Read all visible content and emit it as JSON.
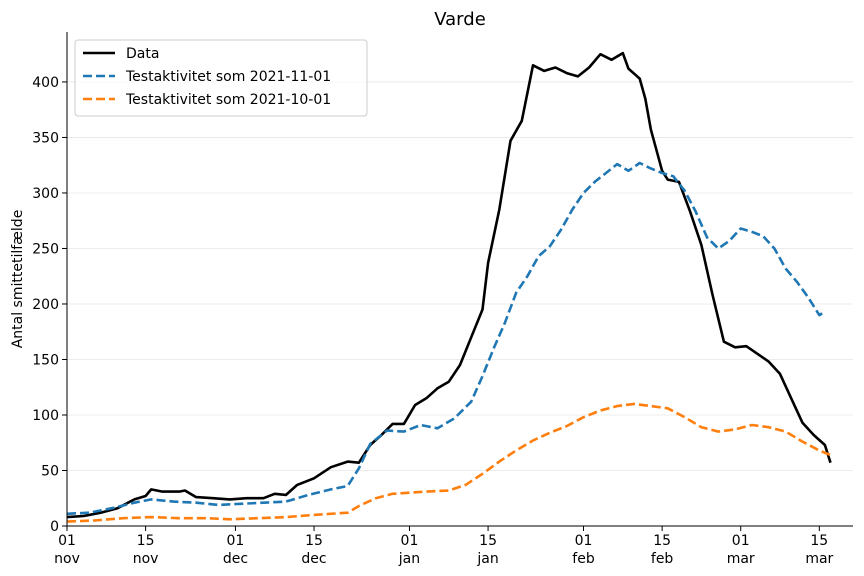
{
  "chart_data": {
    "type": "line",
    "title": "Varde",
    "xlabel": "",
    "ylabel": "Antal smittetilfælde",
    "ylim": [
      0,
      445
    ],
    "x_range": [
      "2021-11-01",
      "2022-03-21"
    ],
    "yticks": [
      0,
      50,
      100,
      150,
      200,
      250,
      300,
      350,
      400
    ],
    "xticks": [
      {
        "date": "2021-11-01",
        "day": "01",
        "month": "nov"
      },
      {
        "date": "2021-11-15",
        "day": "15",
        "month": "nov"
      },
      {
        "date": "2021-12-01",
        "day": "01",
        "month": "dec"
      },
      {
        "date": "2021-12-15",
        "day": "15",
        "month": "dec"
      },
      {
        "date": "2022-01-01",
        "day": "01",
        "month": "jan"
      },
      {
        "date": "2022-01-15",
        "day": "15",
        "month": "jan"
      },
      {
        "date": "2022-02-01",
        "day": "01",
        "month": "feb"
      },
      {
        "date": "2022-02-15",
        "day": "15",
        "month": "feb"
      },
      {
        "date": "2022-03-01",
        "day": "01",
        "month": "mar"
      },
      {
        "date": "2022-03-15",
        "day": "15",
        "month": "mar"
      }
    ],
    "grid": "horizontal",
    "legend_position": "top-left",
    "series": [
      {
        "name": "Data",
        "color": "#000000",
        "style": "solid",
        "points": [
          [
            "2021-11-01",
            8
          ],
          [
            "2021-11-04",
            9
          ],
          [
            "2021-11-07",
            12
          ],
          [
            "2021-11-10",
            16
          ],
          [
            "2021-11-13",
            24
          ],
          [
            "2021-11-15",
            27
          ],
          [
            "2021-11-16",
            33
          ],
          [
            "2021-11-18",
            31
          ],
          [
            "2021-11-21",
            31
          ],
          [
            "2021-11-22",
            32
          ],
          [
            "2021-11-24",
            26
          ],
          [
            "2021-11-27",
            25
          ],
          [
            "2021-11-30",
            24
          ],
          [
            "2021-12-03",
            25
          ],
          [
            "2021-12-06",
            25
          ],
          [
            "2021-12-08",
            29
          ],
          [
            "2021-12-10",
            28
          ],
          [
            "2021-12-12",
            37
          ],
          [
            "2021-12-15",
            43
          ],
          [
            "2021-12-18",
            53
          ],
          [
            "2021-12-21",
            58
          ],
          [
            "2021-12-23",
            57
          ],
          [
            "2021-12-25",
            73
          ],
          [
            "2021-12-27",
            82
          ],
          [
            "2021-12-29",
            92
          ],
          [
            "2021-12-31",
            92
          ],
          [
            "2022-01-02",
            109
          ],
          [
            "2022-01-04",
            115
          ],
          [
            "2022-01-06",
            124
          ],
          [
            "2022-01-08",
            130
          ],
          [
            "2022-01-10",
            145
          ],
          [
            "2022-01-12",
            170
          ],
          [
            "2022-01-14",
            195
          ],
          [
            "2022-01-15",
            237
          ],
          [
            "2022-01-17",
            285
          ],
          [
            "2022-01-19",
            347
          ],
          [
            "2022-01-21",
            365
          ],
          [
            "2022-01-23",
            415
          ],
          [
            "2022-01-25",
            410
          ],
          [
            "2022-01-27",
            413
          ],
          [
            "2022-01-29",
            408
          ],
          [
            "2022-01-31",
            405
          ],
          [
            "2022-02-02",
            413
          ],
          [
            "2022-02-04",
            425
          ],
          [
            "2022-02-06",
            420
          ],
          [
            "2022-02-08",
            426
          ],
          [
            "2022-02-09",
            412
          ],
          [
            "2022-02-11",
            403
          ],
          [
            "2022-02-12",
            385
          ],
          [
            "2022-02-13",
            357
          ],
          [
            "2022-02-15",
            320
          ],
          [
            "2022-02-16",
            312
          ],
          [
            "2022-02-18",
            310
          ],
          [
            "2022-02-20",
            283
          ],
          [
            "2022-02-22",
            253
          ],
          [
            "2022-02-24",
            208
          ],
          [
            "2022-02-26",
            166
          ],
          [
            "2022-02-28",
            161
          ],
          [
            "2022-03-02",
            162
          ],
          [
            "2022-03-04",
            155
          ],
          [
            "2022-03-06",
            148
          ],
          [
            "2022-03-08",
            137
          ],
          [
            "2022-03-10",
            115
          ],
          [
            "2022-03-12",
            93
          ],
          [
            "2022-03-14",
            82
          ],
          [
            "2022-03-16",
            73
          ],
          [
            "2022-03-17",
            57
          ]
        ]
      },
      {
        "name": "Testaktivitet som 2021-11-01",
        "color": "#1f77b4",
        "style": "dashed",
        "points": [
          [
            "2021-11-01",
            11
          ],
          [
            "2021-11-05",
            12
          ],
          [
            "2021-11-09",
            16
          ],
          [
            "2021-11-13",
            21
          ],
          [
            "2021-11-16",
            24
          ],
          [
            "2021-11-20",
            22
          ],
          [
            "2021-11-24",
            21
          ],
          [
            "2021-11-28",
            19
          ],
          [
            "2021-12-02",
            20
          ],
          [
            "2021-12-06",
            21
          ],
          [
            "2021-12-10",
            22
          ],
          [
            "2021-12-14",
            28
          ],
          [
            "2021-12-18",
            33
          ],
          [
            "2021-12-21",
            36
          ],
          [
            "2021-12-23",
            52
          ],
          [
            "2021-12-25",
            74
          ],
          [
            "2021-12-28",
            86
          ],
          [
            "2021-12-31",
            85
          ],
          [
            "2022-01-03",
            91
          ],
          [
            "2022-01-06",
            88
          ],
          [
            "2022-01-09",
            97
          ],
          [
            "2022-01-12",
            112
          ],
          [
            "2022-01-14",
            135
          ],
          [
            "2022-01-16",
            160
          ],
          [
            "2022-01-18",
            183
          ],
          [
            "2022-01-20",
            210
          ],
          [
            "2022-01-22",
            225
          ],
          [
            "2022-01-24",
            243
          ],
          [
            "2022-01-26",
            252
          ],
          [
            "2022-01-28",
            267
          ],
          [
            "2022-01-30",
            285
          ],
          [
            "2022-02-01",
            300
          ],
          [
            "2022-02-03",
            310
          ],
          [
            "2022-02-05",
            318
          ],
          [
            "2022-02-07",
            326
          ],
          [
            "2022-02-09",
            320
          ],
          [
            "2022-02-11",
            327
          ],
          [
            "2022-02-13",
            322
          ],
          [
            "2022-02-15",
            318
          ],
          [
            "2022-02-17",
            315
          ],
          [
            "2022-02-19",
            302
          ],
          [
            "2022-02-21",
            283
          ],
          [
            "2022-02-23",
            260
          ],
          [
            "2022-02-25",
            250
          ],
          [
            "2022-02-27",
            257
          ],
          [
            "2022-03-01",
            268
          ],
          [
            "2022-03-03",
            265
          ],
          [
            "2022-03-05",
            261
          ],
          [
            "2022-03-07",
            250
          ],
          [
            "2022-03-09",
            232
          ],
          [
            "2022-03-11",
            220
          ],
          [
            "2022-03-13",
            206
          ],
          [
            "2022-03-15",
            190
          ],
          [
            "2022-03-16",
            193
          ]
        ]
      },
      {
        "name": "Testaktivitet som 2021-10-01",
        "color": "#ff7f0e",
        "style": "dashed",
        "points": [
          [
            "2021-11-01",
            4
          ],
          [
            "2021-11-06",
            5
          ],
          [
            "2021-11-11",
            7
          ],
          [
            "2021-11-16",
            8
          ],
          [
            "2021-11-21",
            7
          ],
          [
            "2021-11-26",
            7
          ],
          [
            "2021-11-30",
            6
          ],
          [
            "2021-12-05",
            7
          ],
          [
            "2021-12-10",
            8
          ],
          [
            "2021-12-15",
            10
          ],
          [
            "2021-12-21",
            12
          ],
          [
            "2021-12-23",
            18
          ],
          [
            "2021-12-26",
            25
          ],
          [
            "2021-12-29",
            29
          ],
          [
            "2022-01-01",
            30
          ],
          [
            "2022-01-04",
            31
          ],
          [
            "2022-01-08",
            32
          ],
          [
            "2022-01-11",
            37
          ],
          [
            "2022-01-14",
            47
          ],
          [
            "2022-01-17",
            58
          ],
          [
            "2022-01-20",
            68
          ],
          [
            "2022-01-23",
            77
          ],
          [
            "2022-01-26",
            84
          ],
          [
            "2022-01-29",
            90
          ],
          [
            "2022-02-01",
            98
          ],
          [
            "2022-02-04",
            104
          ],
          [
            "2022-02-07",
            108
          ],
          [
            "2022-02-10",
            110
          ],
          [
            "2022-02-13",
            108
          ],
          [
            "2022-02-16",
            106
          ],
          [
            "2022-02-19",
            98
          ],
          [
            "2022-02-22",
            89
          ],
          [
            "2022-02-25",
            85
          ],
          [
            "2022-02-28",
            87
          ],
          [
            "2022-03-03",
            91
          ],
          [
            "2022-03-06",
            89
          ],
          [
            "2022-03-09",
            85
          ],
          [
            "2022-03-12",
            76
          ],
          [
            "2022-03-15",
            68
          ],
          [
            "2022-03-17",
            64
          ]
        ]
      }
    ]
  }
}
